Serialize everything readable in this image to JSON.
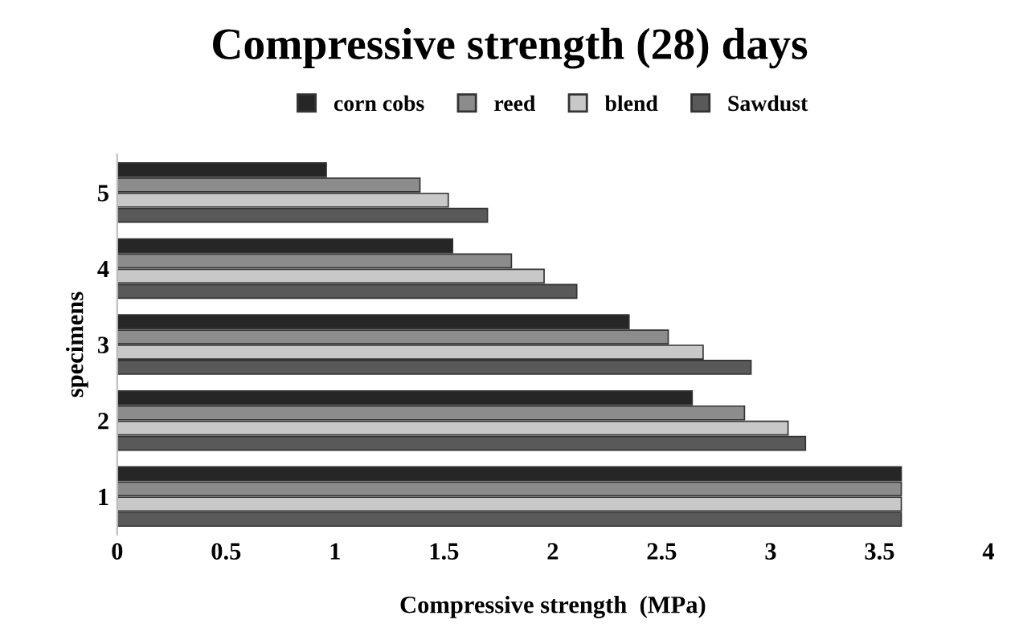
{
  "chart_data": {
    "type": "bar",
    "orientation": "horizontal",
    "title": "Compressive strength (28) days",
    "xlabel": "Compressive strength  (MPa)",
    "ylabel": "specimens",
    "categories": [
      "5",
      "4",
      "3",
      "2",
      "1"
    ],
    "series": [
      {
        "name": "corn cobs",
        "color": "#262626",
        "values": [
          0.96,
          1.54,
          2.35,
          2.64,
          3.6
        ]
      },
      {
        "name": "reed",
        "color": "#8c8c8c",
        "values": [
          1.39,
          1.81,
          2.53,
          2.88,
          3.6
        ]
      },
      {
        "name": "blend",
        "color": "#c8c8c8",
        "values": [
          1.52,
          1.96,
          2.69,
          3.08,
          3.6
        ]
      },
      {
        "name": "Sawdust",
        "color": "#595959",
        "values": [
          1.7,
          2.11,
          2.91,
          3.16,
          3.6
        ]
      }
    ],
    "xlim": [
      0,
      4
    ],
    "xticks": [
      0,
      0.5,
      1,
      1.5,
      2,
      2.5,
      3,
      3.5,
      4
    ],
    "grid": false,
    "legend": "top"
  }
}
